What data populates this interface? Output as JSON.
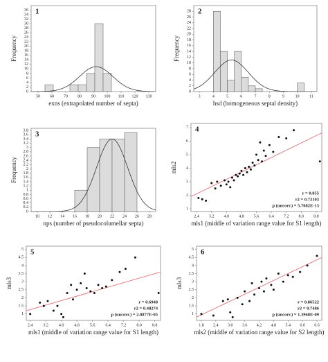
{
  "chart_data": [
    {
      "type": "histogram",
      "label": "1",
      "x_label": "exns (extrapolated number of septa)",
      "y_label": "Frequency",
      "bins": [
        55,
        61,
        67,
        73,
        79,
        85,
        91,
        97,
        103
      ],
      "values": [
        3,
        0,
        0,
        3,
        3,
        8,
        30,
        8
      ],
      "color": "#dcdcdc",
      "curve": {
        "mean": 92,
        "sd": 12,
        "peak": 11
      },
      "xlim": [
        45,
        135
      ],
      "xticks": [
        50,
        60,
        70,
        80,
        90,
        100,
        110,
        120,
        130
      ],
      "ylim": [
        0,
        38
      ],
      "yticks": [
        0,
        2,
        4,
        6,
        8,
        10,
        12,
        14,
        16,
        18,
        20,
        22,
        24,
        26,
        28,
        30,
        32,
        34,
        36
      ]
    },
    {
      "type": "histogram",
      "label": "2",
      "x_label": "hsd (homogeneous septal density)",
      "y_label": "Frequency",
      "bins": [
        4,
        4.5,
        5,
        5.5,
        6,
        6.5,
        7,
        7.5,
        8,
        8.5,
        9,
        9.5,
        10,
        10.5
      ],
      "values": [
        28,
        14,
        4,
        14,
        5,
        2,
        1,
        0,
        0,
        0,
        0,
        0,
        3
      ],
      "color": "#dcdcdc",
      "curve": {
        "mean": 5.3,
        "sd": 1.2,
        "peak": 11
      },
      "xlim": [
        2.6,
        11.4
      ],
      "xticks": [
        3,
        4,
        5,
        6,
        7,
        8,
        9,
        10,
        11
      ],
      "ylim": [
        0,
        30
      ],
      "yticks": [
        0,
        2,
        4,
        6,
        8,
        10,
        12,
        14,
        16,
        18,
        20,
        22,
        24,
        26,
        28
      ]
    },
    {
      "type": "histogram",
      "label": "3",
      "x_label": "nps (number of pseudocolumellar septa)",
      "y_label": "Frequency",
      "bins": [
        16,
        18,
        20,
        22,
        24,
        26
      ],
      "values": [
        1,
        3,
        3.4,
        3.4,
        3.7
      ],
      "color": "#dcdcdc",
      "curve": {
        "mean": 22,
        "sd": 2.5,
        "peak": 3.4
      },
      "xlim": [
        9,
        29
      ],
      "xticks": [
        10,
        12,
        14,
        16,
        18,
        20,
        22,
        24,
        26,
        28
      ],
      "ylim": [
        0,
        3.9
      ],
      "yticks": [
        0,
        0.2,
        0.4,
        0.6,
        0.8,
        1,
        1.2,
        1.4,
        1.6,
        1.8,
        2,
        2.2,
        2.4,
        2.6,
        2.8,
        3,
        3.2,
        3.4,
        3.6,
        3.8
      ]
    },
    {
      "type": "scatter",
      "label": "4",
      "x_label": "mls1 (middle of variation range value for S1 length)",
      "y_label": "mls2",
      "x": [
        2.5,
        2.7,
        2.9,
        3.2,
        3.4,
        3.5,
        3.7,
        3.9,
        4.0,
        4.1,
        4.2,
        4.3,
        4.4,
        4.5,
        4.6,
        4.7,
        4.8,
        4.9,
        5.0,
        5.1,
        5.2,
        5.3,
        5.4,
        5.5,
        5.6,
        5.7,
        5.8,
        5.9,
        6.0,
        6.1,
        6.3,
        6.5,
        6.8,
        7.2,
        7.6,
        9.0
      ],
      "values": [
        1.8,
        1.7,
        1.6,
        2.9,
        2.5,
        3.0,
        2.7,
        3.1,
        2.8,
        3.0,
        2.6,
        3.3,
        3.1,
        3.5,
        3.4,
        3.6,
        3.8,
        3.5,
        4.0,
        3.7,
        4.1,
        3.9,
        4.4,
        4.2,
        5.0,
        4.6,
        5.9,
        4.5,
        5.3,
        4.9,
        5.7,
        5.2,
        6.3,
        6.2,
        6.8,
        4.5
      ],
      "color": "#111111",
      "fit": {
        "x": [
          2.1,
          9.1
        ],
        "y": [
          1.9,
          6.6
        ],
        "color": "#e07070"
      },
      "annotations": [
        "r = 0.855",
        "r2 = 0.73103",
        "p (uncorr.) = 5.7082E-13"
      ],
      "xlim": [
        2.1,
        9.1
      ],
      "xticks": [
        2.4,
        3.2,
        {
          "value": 4,
          "label": "4.0"
        },
        4.8,
        5.6,
        6.4,
        7.2,
        {
          "value": 8,
          "label": "8.0"
        },
        8.8
      ],
      "ylim": [
        0.8,
        7.3
      ],
      "yticks": [
        1,
        2,
        3,
        4,
        5,
        6,
        7
      ]
    },
    {
      "type": "scatter",
      "label": "5",
      "x_label": "mls1 (middle of variation range value for S1 length)",
      "y_label": "mls3",
      "x": [
        2.4,
        2.9,
        3.1,
        3.3,
        3.6,
        3.8,
        4.0,
        4.1,
        4.3,
        4.5,
        4.6,
        4.8,
        5.0,
        5.2,
        5.3,
        5.5,
        5.7,
        5.9,
        6.1,
        6.3,
        6.6,
        7.0,
        7.3,
        7.8,
        9.0
      ],
      "values": [
        1.0,
        1.7,
        1.5,
        1.8,
        1.2,
        1.5,
        1.0,
        0.8,
        2.3,
        2.8,
        1.9,
        2.5,
        2.9,
        3.5,
        2.6,
        2.4,
        2.3,
        2.8,
        2.6,
        2.7,
        3.1,
        3.6,
        3.8,
        4.5,
        2.3
      ],
      "color": "#111111",
      "fit": {
        "x": [
          2.2,
          9.1
        ],
        "y": [
          1.2,
          3.6
        ],
        "color": "#e07070"
      },
      "annotations": [
        "r = 0.6948",
        "r2 = 0.48274",
        "p (uncorr.) = 2.8877E-05"
      ],
      "xlim": [
        2.2,
        9.1
      ],
      "xticks": [
        2.4,
        3.2,
        {
          "value": 4,
          "label": "4.0"
        },
        4.8,
        5.6,
        6.4,
        7.2,
        {
          "value": 8,
          "label": "8.0"
        },
        8.8
      ],
      "ylim": [
        0.6,
        5.2
      ],
      "yticks": [
        1,
        1.5,
        2,
        2.5,
        3,
        3.5,
        4,
        4.5,
        5
      ]
    },
    {
      "type": "scatter",
      "label": "6",
      "x_label": "mls2 (middle of variation range value for S2 length)",
      "y_label": "mls3",
      "x": [
        1.8,
        2.3,
        2.7,
        2.9,
        3.0,
        3.1,
        3.3,
        3.5,
        3.6,
        3.8,
        3.9,
        4.0,
        4.2,
        4.3,
        4.4,
        4.5,
        4.7,
        4.8,
        5.0,
        5.2,
        5.4,
        5.6,
        5.9,
        6.2,
        6.6
      ],
      "values": [
        1.0,
        0.9,
        1.8,
        1.9,
        1.1,
        0.8,
        2.0,
        1.6,
        2.4,
        1.8,
        2.9,
        2.2,
        2.6,
        3.0,
        2.4,
        3.2,
        2.8,
        2.5,
        3.5,
        3.0,
        3.4,
        3.3,
        3.6,
        4.0,
        4.6
      ],
      "color": "#111111",
      "fit": {
        "x": [
          1.6,
          6.8
        ],
        "y": [
          0.8,
          4.5
        ],
        "color": "#e07070"
      },
      "annotations": [
        "r = 0.86522",
        "r2 = 0.7486",
        "p (uncorr.) = 1.3968E-09"
      ],
      "xlim": [
        1.6,
        6.8
      ],
      "xticks": [
        1.8,
        2.4,
        {
          "value": 3,
          "label": "3.0"
        },
        3.6,
        4.2,
        4.8,
        5.4,
        {
          "value": 6,
          "label": "6.0"
        },
        6.6
      ],
      "ylim": [
        0.6,
        5.2
      ],
      "yticks": [
        1,
        1.5,
        2,
        2.5,
        3,
        3.5,
        4,
        4.5,
        5
      ]
    }
  ]
}
